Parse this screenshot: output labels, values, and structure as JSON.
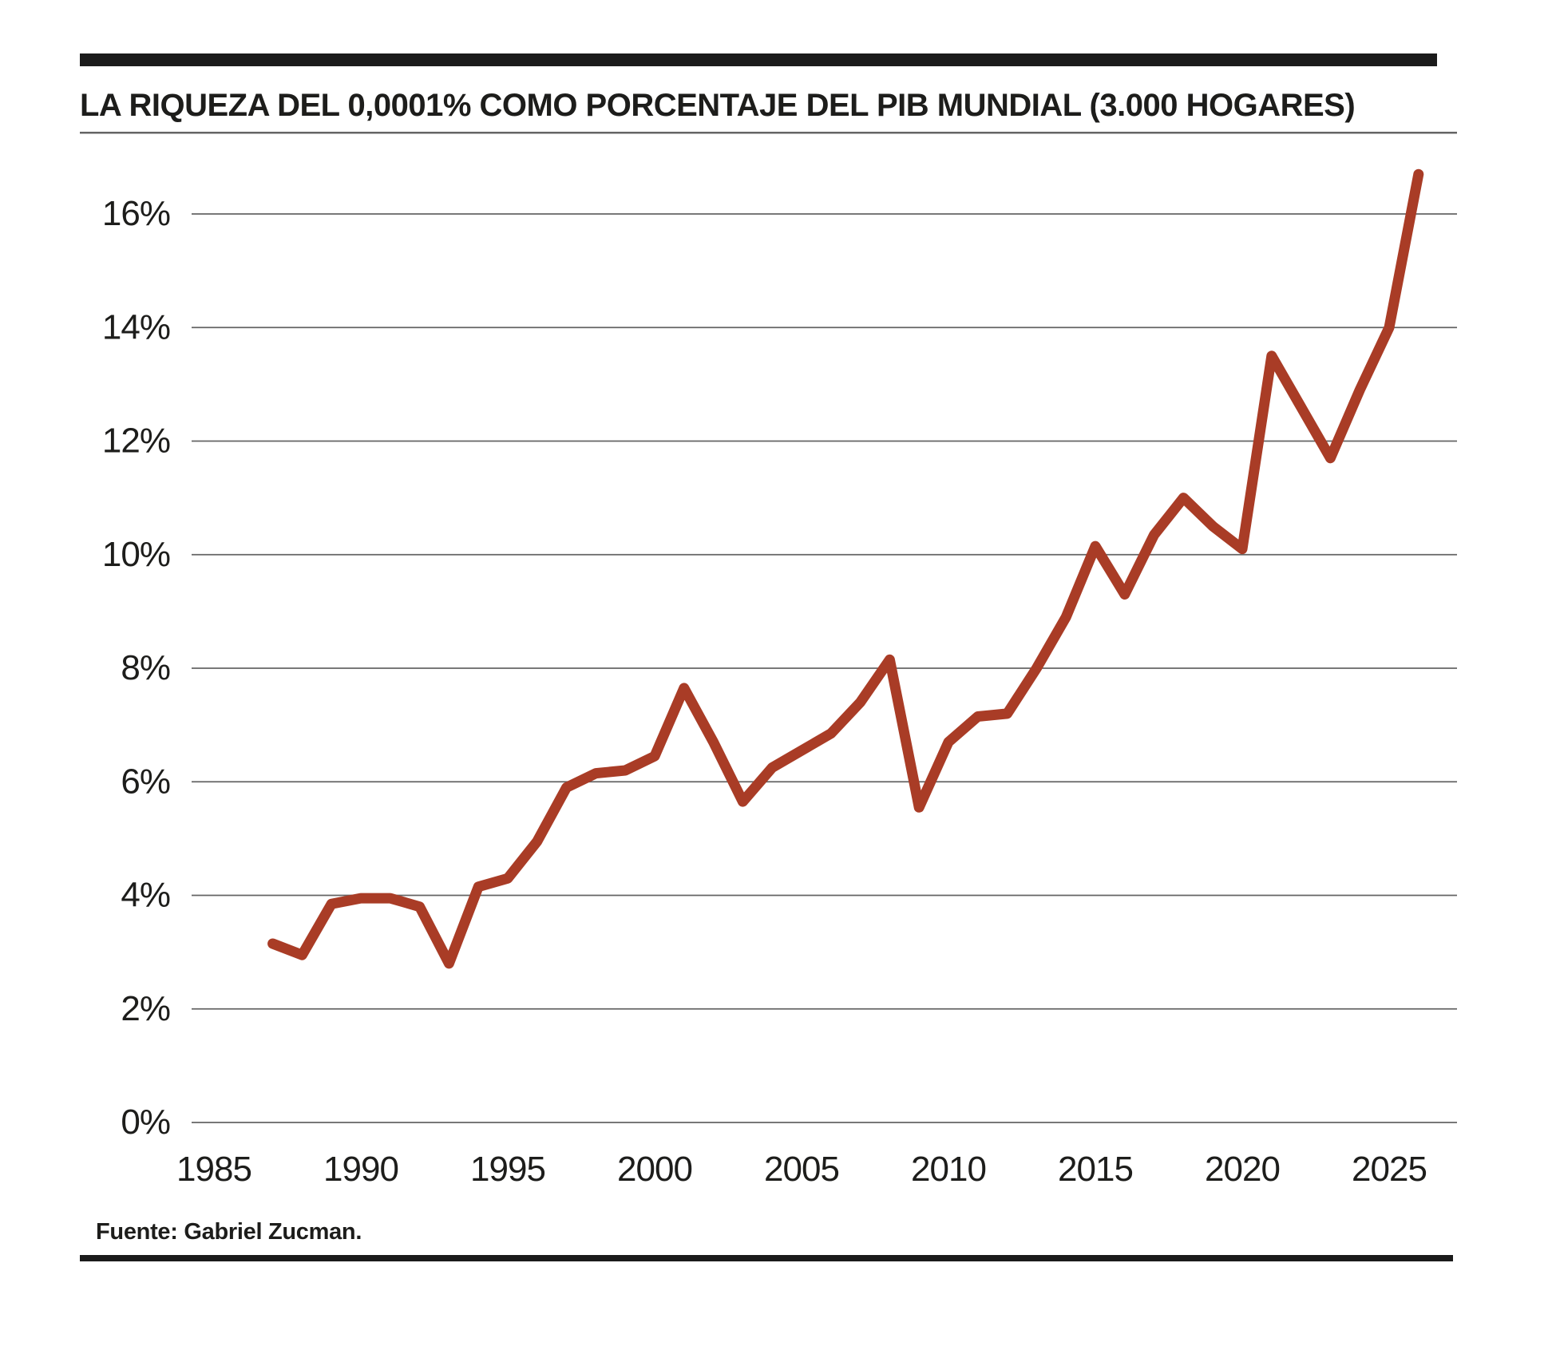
{
  "title": "LA RIQUEZA DEL 0,0001% COMO PORCENTAJE DEL PIB MUNDIAL (3.000 HOGARES)",
  "source": "Fuente: Gabriel Zucman.",
  "colors": {
    "line": "#A93C26",
    "text": "#1D1D1B",
    "grid": "#646464",
    "rule_bar": "#1B1B1B",
    "background": "#FFFFFF"
  },
  "chart_data": {
    "type": "line",
    "title": "LA RIQUEZA DEL 0,0001% COMO PORCENTAJE DEL PIB MUNDIAL (3.000 HOGARES)",
    "series": [
      {
        "name": "Riqueza del 0,0001% como porcentaje del PIB mundial",
        "x": [
          1987,
          1988,
          1989,
          1990,
          1991,
          1992,
          1993,
          1994,
          1995,
          1996,
          1997,
          1998,
          1999,
          2000,
          2001,
          2002,
          2003,
          2004,
          2005,
          2006,
          2007,
          2008,
          2009,
          2010,
          2011,
          2012,
          2013,
          2014,
          2015,
          2016,
          2017,
          2018,
          2019,
          2020,
          2021,
          2022,
          2023,
          2024,
          2025,
          2026
        ],
        "y": [
          3.15,
          2.95,
          3.85,
          3.95,
          3.95,
          3.8,
          2.8,
          4.15,
          4.3,
          4.95,
          5.9,
          6.15,
          6.2,
          6.45,
          7.65,
          6.7,
          5.65,
          6.25,
          6.55,
          6.85,
          7.4,
          8.15,
          5.55,
          6.7,
          7.15,
          7.2,
          8.0,
          8.9,
          10.15,
          9.3,
          10.35,
          11.0,
          10.5,
          10.1,
          13.5,
          12.6,
          11.7,
          12.9,
          14.0,
          16.7
        ]
      }
    ],
    "xlabel": "",
    "ylabel": "",
    "xticks": [
      1985,
      1990,
      1995,
      2000,
      2005,
      2010,
      2015,
      2020,
      2025
    ],
    "yticks": [
      0,
      2,
      4,
      6,
      8,
      10,
      12,
      14,
      16
    ],
    "ytick_suffix": "%",
    "xlim": [
      1984,
      2027
    ],
    "ylim": [
      0,
      16.9
    ],
    "grid": "horizontal-only",
    "legend": "none"
  }
}
